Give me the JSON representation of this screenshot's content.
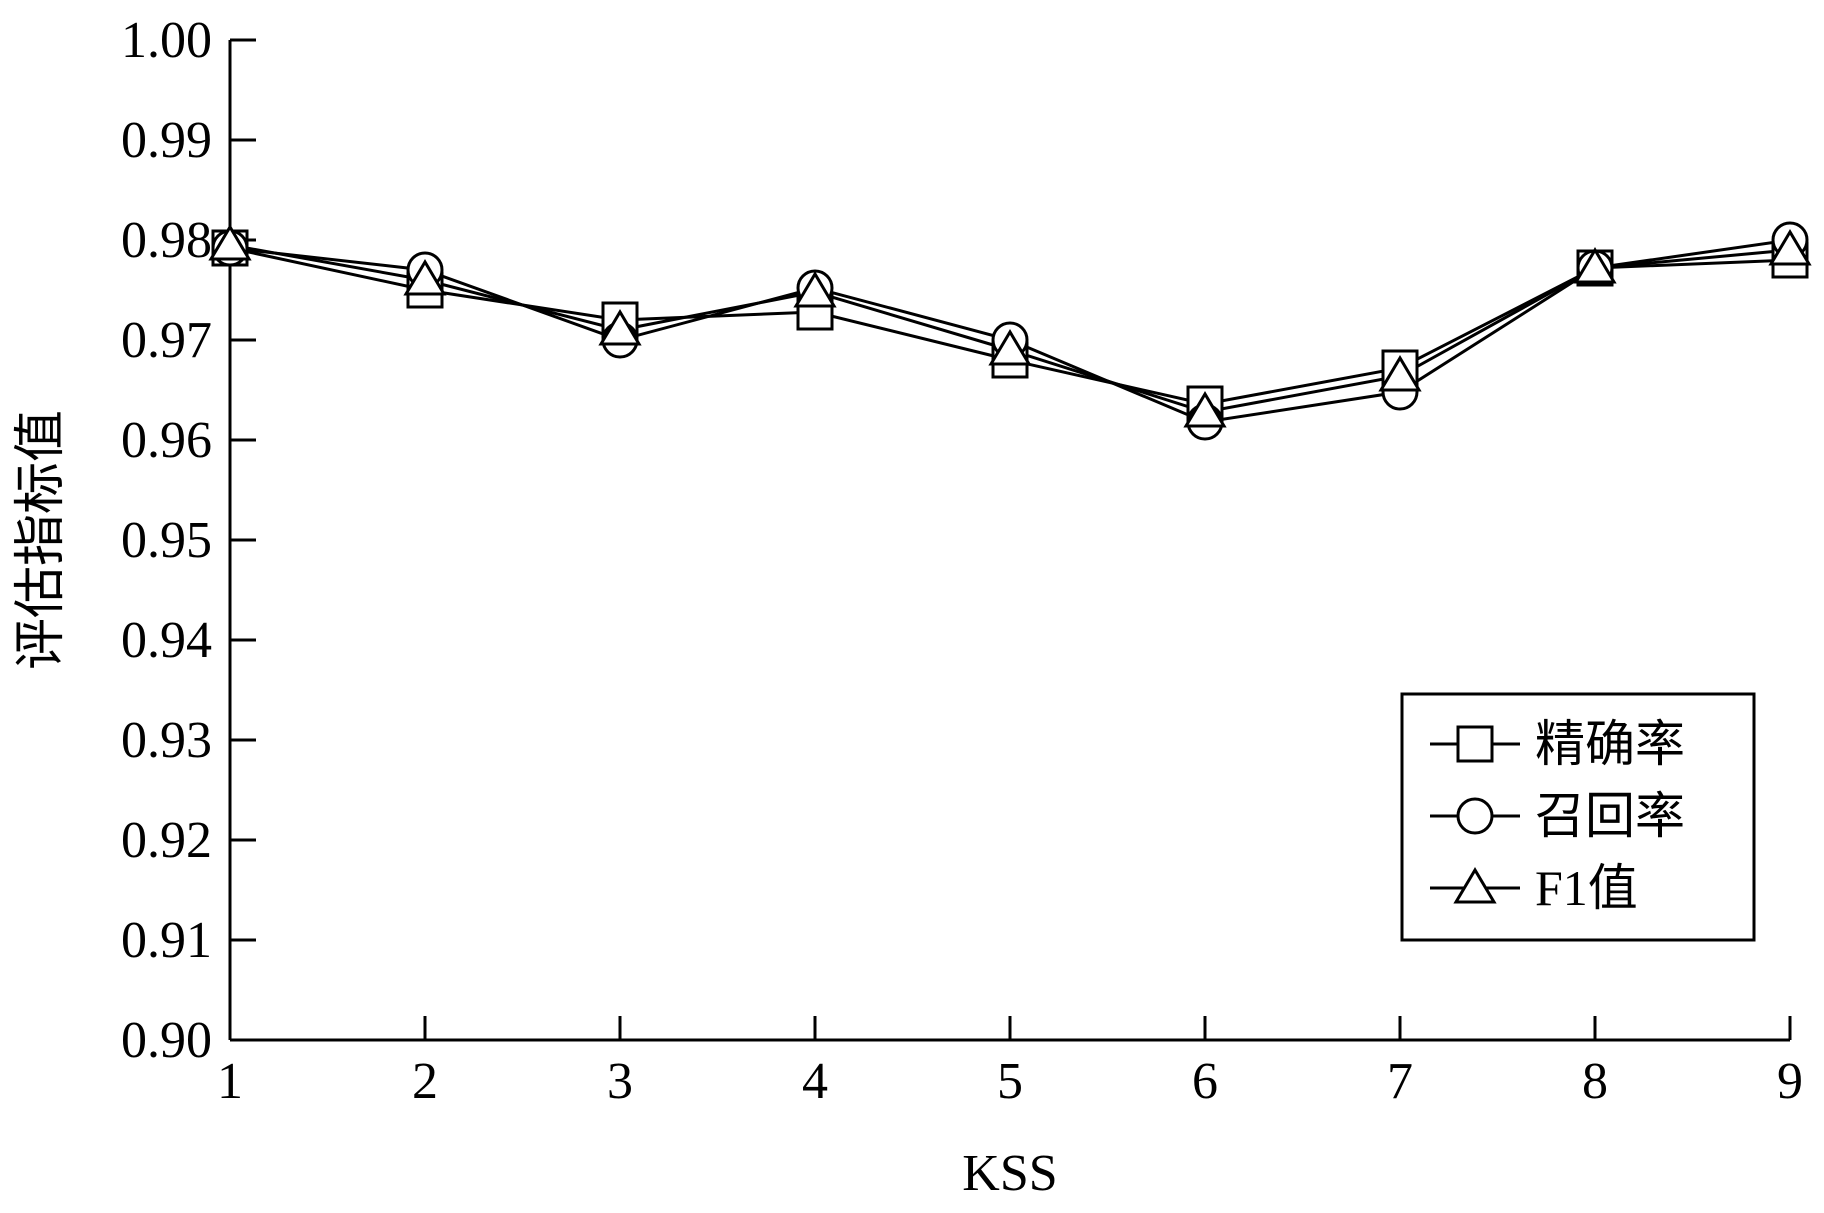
{
  "chart_data": {
    "type": "line",
    "title": "",
    "xlabel": "KSS",
    "ylabel": "评估指标值",
    "xlim": [
      1,
      9
    ],
    "ylim": [
      0.9,
      1.0
    ],
    "x": [
      1,
      2,
      3,
      4,
      5,
      6,
      7,
      8,
      9
    ],
    "x_ticks": [
      "1",
      "2",
      "3",
      "4",
      "5",
      "6",
      "7",
      "8",
      "9"
    ],
    "y_ticks": [
      0.9,
      0.91,
      0.92,
      0.93,
      0.94,
      0.95,
      0.96,
      0.97,
      0.98,
      0.99,
      1.0
    ],
    "y_tick_labels": [
      "0.90",
      "0.91",
      "0.92",
      "0.93",
      "0.94",
      "0.95",
      "0.96",
      "0.97",
      "0.98",
      "0.99",
      "1.00"
    ],
    "grid": false,
    "legend": "right",
    "series": [
      {
        "name": "精确率",
        "marker": "square",
        "values": [
          0.9792,
          0.975,
          0.972,
          0.9728,
          0.968,
          0.9636,
          0.9672,
          0.9772,
          0.978
        ]
      },
      {
        "name": "召回率",
        "marker": "circle",
        "values": [
          0.9792,
          0.977,
          0.97,
          0.9752,
          0.97,
          0.9618,
          0.9648,
          0.9772,
          0.98
        ]
      },
      {
        "name": "F1值",
        "marker": "triangle",
        "values": [
          0.9795,
          0.976,
          0.971,
          0.9748,
          0.969,
          0.9628,
          0.9664,
          0.9772,
          0.979
        ]
      }
    ]
  }
}
